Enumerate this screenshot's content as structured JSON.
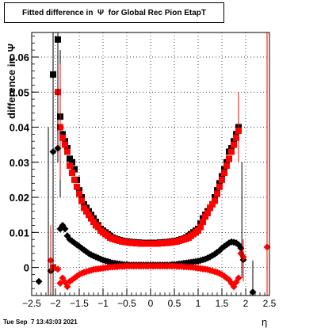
{
  "title": "Fitted difference in  Ψ  for Global Rec Pion EtapT",
  "timestamp": "Tue Sep  7 13:43:03 2021",
  "colors": {
    "series1": "#000000",
    "series2": "#ff0000",
    "series3": "#000000",
    "series4": "#ff0000"
  },
  "chart_data": {
    "type": "scatter",
    "title": "Fitted difference in  Ψ  for Global Rec Pion EtapT",
    "xlabel": "η",
    "ylabel": "difference in  Ψ",
    "xlim": [
      -2.5,
      2.5
    ],
    "ylim": [
      -0.008,
      0.067
    ],
    "x_ticks": [
      -2.5,
      -2,
      -1.5,
      -1,
      -0.5,
      0,
      0.5,
      1,
      1.5,
      2,
      2.5
    ],
    "x_tick_labels": [
      "−2.5",
      "−2",
      "−1.5",
      "−1",
      "−0.5",
      "0",
      "0.5",
      "1",
      "1.5",
      "2",
      "2.5"
    ],
    "y_ticks": [
      0,
      0.01,
      0.02,
      0.03,
      0.04,
      0.05,
      0.06
    ],
    "y_tick_labels": [
      "0",
      "0.01",
      "0.02",
      "0.03",
      "0.04",
      "0.05",
      "0.06"
    ],
    "grid": true,
    "series": [
      {
        "marker": "square",
        "x": [
          -2.05,
          -1.95,
          -1.9,
          -1.85,
          -1.8,
          -1.75,
          -1.7,
          -1.65,
          -1.6,
          -1.55,
          -1.5,
          -1.45,
          -1.4,
          -1.35,
          -1.3,
          -1.25,
          -1.2,
          -1.15,
          -1.1,
          -1.05,
          -1.0,
          -0.95,
          -0.9,
          -0.85,
          -0.8,
          -0.75,
          -0.7,
          -0.65,
          -0.6,
          -0.55,
          -0.5,
          -0.45,
          -0.4,
          -0.35,
          -0.3,
          -0.25,
          -0.2,
          -0.15,
          -0.1,
          -0.05,
          0.0,
          0.05,
          0.1,
          0.15,
          0.2,
          0.25,
          0.3,
          0.35,
          0.4,
          0.45,
          0.5,
          0.55,
          0.6,
          0.65,
          0.7,
          0.75,
          0.8,
          0.85,
          0.9,
          0.95,
          1.0,
          1.05,
          1.1,
          1.15,
          1.2,
          1.25,
          1.3,
          1.35,
          1.4,
          1.45,
          1.5,
          1.55,
          1.6,
          1.65,
          1.7,
          1.75,
          1.8,
          1.85
        ],
        "y": [
          0.055,
          0.065,
          0.043,
          0.038,
          0.036,
          0.034,
          0.031,
          0.03,
          0.028,
          0.025,
          0.022,
          0.02,
          0.018,
          0.017,
          0.016,
          0.015,
          0.014,
          0.013,
          0.012,
          0.011,
          0.0105,
          0.01,
          0.0095,
          0.009,
          0.0085,
          0.0082,
          0.008,
          0.0078,
          0.0076,
          0.0075,
          0.0074,
          0.0073,
          0.0072,
          0.0072,
          0.0071,
          0.0071,
          0.007,
          0.007,
          0.007,
          0.007,
          0.007,
          0.007,
          0.007,
          0.007,
          0.0071,
          0.0071,
          0.0072,
          0.0072,
          0.0073,
          0.0074,
          0.0075,
          0.0076,
          0.0078,
          0.008,
          0.0082,
          0.0085,
          0.009,
          0.0095,
          0.01,
          0.0105,
          0.011,
          0.0125,
          0.014,
          0.015,
          0.016,
          0.017,
          0.018,
          0.02,
          0.022,
          0.024,
          0.026,
          0.028,
          0.03,
          0.033,
          0.034,
          0.036,
          0.038,
          0.04
        ]
      },
      {
        "marker": "square",
        "x": [
          -2.05,
          -1.95,
          -1.9,
          -1.85,
          -1.8,
          -1.75,
          -1.7,
          -1.65,
          -1.6,
          -1.55,
          -1.5,
          -1.45,
          -1.4,
          -1.35,
          -1.3,
          -1.25,
          -1.2,
          -1.15,
          -1.1,
          -1.05,
          -1.0,
          -0.95,
          -0.9,
          -0.85,
          -0.8,
          -0.75,
          -0.7,
          -0.65,
          -0.6,
          -0.55,
          -0.5,
          -0.45,
          -0.4,
          -0.35,
          -0.3,
          -0.25,
          -0.2,
          -0.15,
          -0.1,
          -0.05,
          0.0,
          0.05,
          0.1,
          0.15,
          0.2,
          0.25,
          0.3,
          0.35,
          0.4,
          0.45,
          0.5,
          0.55,
          0.6,
          0.65,
          0.7,
          0.75,
          0.8,
          0.85,
          0.9,
          0.95,
          1.0,
          1.05,
          1.1,
          1.15,
          1.2,
          1.25,
          1.3,
          1.35,
          1.4,
          1.45,
          1.5,
          1.55,
          1.6,
          1.65,
          1.7,
          1.75,
          1.8,
          1.85
        ],
        "y": [
          0.0,
          0.05,
          0.04,
          0.037,
          0.035,
          0.033,
          0.029,
          0.027,
          0.025,
          0.023,
          0.021,
          0.019,
          0.017,
          0.016,
          0.015,
          0.014,
          0.013,
          0.012,
          0.0115,
          0.0105,
          0.01,
          0.0095,
          0.009,
          0.0085,
          0.0082,
          0.008,
          0.0078,
          0.0076,
          0.0074,
          0.0073,
          0.0072,
          0.0071,
          0.007,
          0.007,
          0.0069,
          0.0069,
          0.0068,
          0.0068,
          0.0068,
          0.0068,
          0.0068,
          0.0068,
          0.0068,
          0.0068,
          0.0069,
          0.0069,
          0.007,
          0.007,
          0.0071,
          0.0072,
          0.0073,
          0.0074,
          0.0076,
          0.0078,
          0.008,
          0.0082,
          0.0085,
          0.009,
          0.0095,
          0.01,
          0.0105,
          0.0115,
          0.013,
          0.0145,
          0.0155,
          0.017,
          0.018,
          0.019,
          0.021,
          0.023,
          0.025,
          0.027,
          0.029,
          0.031,
          0.033,
          0.035,
          0.037,
          0.039
        ]
      },
      {
        "marker": "diamond",
        "x": [
          -2.35,
          -2.1,
          -2.05,
          -1.95,
          -1.9,
          -1.85,
          -1.8,
          -1.75,
          -1.7,
          -1.65,
          -1.6,
          -1.55,
          -1.5,
          -1.45,
          -1.4,
          -1.35,
          -1.3,
          -1.25,
          -1.2,
          -1.15,
          -1.1,
          -1.05,
          -1.0,
          -0.95,
          -0.9,
          -0.85,
          -0.8,
          -0.75,
          -0.7,
          -0.65,
          -0.6,
          -0.55,
          -0.5,
          -0.45,
          -0.4,
          -0.35,
          -0.3,
          -0.25,
          -0.2,
          -0.15,
          -0.1,
          -0.05,
          0.0,
          0.05,
          0.1,
          0.15,
          0.2,
          0.25,
          0.3,
          0.35,
          0.4,
          0.45,
          0.5,
          0.55,
          0.6,
          0.65,
          0.7,
          0.75,
          0.8,
          0.85,
          0.9,
          0.95,
          1.0,
          1.05,
          1.1,
          1.15,
          1.2,
          1.25,
          1.3,
          1.35,
          1.4,
          1.45,
          1.5,
          1.55,
          1.6,
          1.65,
          1.7,
          1.75,
          1.8,
          1.85,
          1.9,
          1.95,
          2.15
        ],
        "y": [
          -0.004,
          -0.001,
          0.033,
          0.034,
          0.011,
          0.012,
          0.011,
          0.009,
          0.008,
          0.0075,
          0.007,
          0.0065,
          0.006,
          0.0055,
          0.005,
          0.0045,
          0.004,
          0.0036,
          0.0033,
          0.003,
          0.0027,
          0.0024,
          0.0021,
          0.0019,
          0.0017,
          0.0015,
          0.0013,
          0.0012,
          0.0011,
          0.001,
          0.0009,
          0.0008,
          0.0008,
          0.0007,
          0.0007,
          0.0007,
          0.0007,
          0.0007,
          0.0007,
          0.0007,
          0.0007,
          0.0007,
          0.0007,
          0.0007,
          0.0007,
          0.0007,
          0.0007,
          0.0007,
          0.0007,
          0.0007,
          0.0007,
          0.0008,
          0.0008,
          0.0009,
          0.001,
          0.0011,
          0.0012,
          0.0013,
          0.0014,
          0.0015,
          0.0016,
          0.0017,
          0.0018,
          0.002,
          0.0022,
          0.0024,
          0.0027,
          0.003,
          0.0034,
          0.0038,
          0.0043,
          0.0048,
          0.0055,
          0.006,
          0.0065,
          0.007,
          0.0073,
          0.0072,
          0.007,
          0.0065,
          0.0055,
          0.0022,
          -0.007
        ]
      },
      {
        "marker": "diamond",
        "x": [
          -2.1,
          -1.95,
          -1.9,
          -1.85,
          -1.8,
          -1.75,
          -1.7,
          -1.65,
          -1.6,
          -1.55,
          -1.5,
          -1.45,
          -1.4,
          -1.35,
          -1.3,
          -1.25,
          -1.2,
          -1.15,
          -1.1,
          -1.05,
          -1.0,
          -0.95,
          -0.9,
          -0.85,
          -0.8,
          -0.75,
          -0.7,
          -0.65,
          -0.6,
          -0.55,
          -0.5,
          -0.45,
          -0.4,
          -0.35,
          -0.3,
          -0.25,
          -0.2,
          -0.15,
          -0.1,
          -0.05,
          0.0,
          0.05,
          0.1,
          0.15,
          0.2,
          0.25,
          0.3,
          0.35,
          0.4,
          0.45,
          0.5,
          0.55,
          0.6,
          0.65,
          0.7,
          0.75,
          0.8,
          0.85,
          0.9,
          0.95,
          1.0,
          1.05,
          1.1,
          1.15,
          1.2,
          1.25,
          1.3,
          1.35,
          1.4,
          1.45,
          1.5,
          1.55,
          1.6,
          1.65,
          1.7,
          1.75,
          1.8,
          1.85,
          1.9,
          1.95,
          2.45
        ],
        "y": [
          0.002,
          -0.0005,
          -0.0045,
          -0.003,
          -0.0042,
          -0.0055,
          -0.004,
          -0.0035,
          -0.003,
          -0.0025,
          -0.002,
          -0.0017,
          -0.0014,
          -0.0012,
          -0.001,
          -0.0008,
          -0.0006,
          -0.0005,
          -0.0004,
          -0.0003,
          -0.0002,
          -0.0001,
          0.0,
          0.0001,
          0.0001,
          0.0002,
          0.0002,
          0.0003,
          0.0003,
          0.0003,
          0.0004,
          0.0004,
          0.0004,
          0.0004,
          0.0004,
          0.0004,
          0.0004,
          0.0004,
          0.0004,
          0.0004,
          0.0004,
          0.0004,
          0.0004,
          0.0004,
          0.0004,
          0.0004,
          0.0004,
          0.0004,
          0.0004,
          0.0004,
          0.0004,
          0.0003,
          0.0003,
          0.0003,
          0.0002,
          0.0002,
          0.0001,
          0.0001,
          0.0,
          -0.0001,
          -0.0002,
          -0.0003,
          -0.0004,
          -0.0005,
          -0.0006,
          -0.0008,
          -0.001,
          -0.0012,
          -0.0014,
          -0.0017,
          -0.002,
          -0.0025,
          -0.003,
          -0.0035,
          -0.0045,
          -0.0055,
          -0.0042,
          -0.003,
          0.004,
          0.003,
          0.0058
        ]
      }
    ]
  }
}
